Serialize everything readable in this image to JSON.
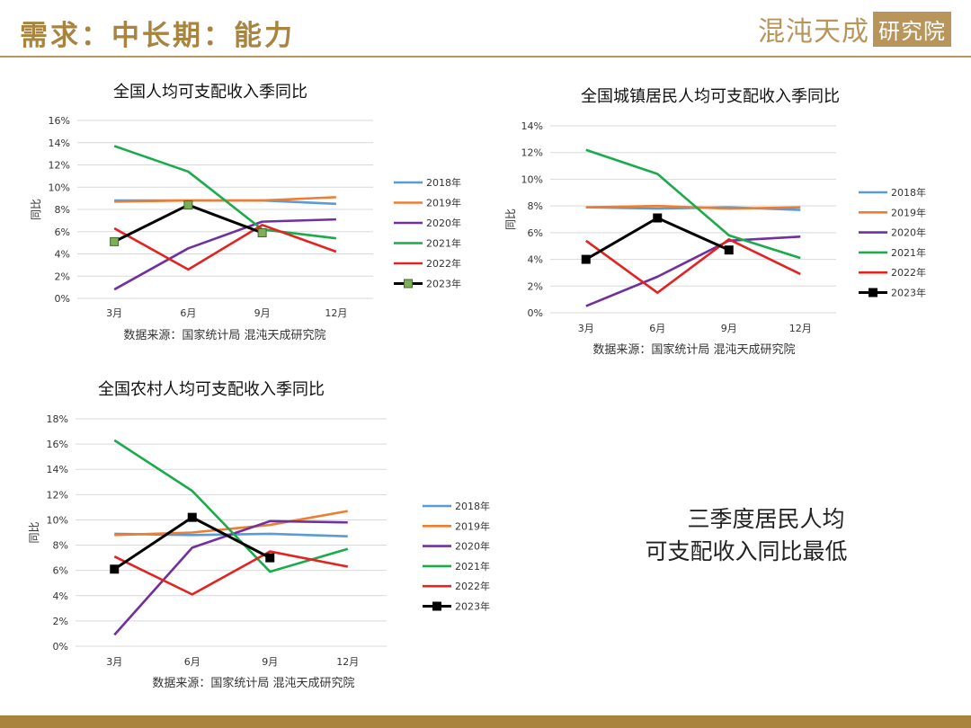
{
  "page": {
    "title": "需求：中长期：能力",
    "logo_text": "混沌天成",
    "logo_box": "研究院",
    "note_line1": "三季度居民人均",
    "note_line2": "可支配收入同比最低"
  },
  "colors": {
    "2018年": "#5b9bd5",
    "2019年": "#ed7d31",
    "2020年": "#7030a0",
    "2021年": "#1aab4b",
    "2022年": "#e32222",
    "2023年": "#000000"
  },
  "chart_data": [
    {
      "id": "national",
      "type": "line",
      "title": "全国人均可支配收入季同比",
      "ylabel": "同比",
      "source": "数据来源：国家统计局 混沌天成研究院",
      "categories": [
        "3月",
        "6月",
        "9月",
        "12月"
      ],
      "ylim": [
        0,
        16
      ],
      "yticks": [
        0,
        2,
        4,
        6,
        8,
        10,
        12,
        14,
        16
      ],
      "legend_position": "right",
      "marker_2023": "square-green",
      "series": [
        {
          "name": "2018年",
          "values": [
            8.8,
            8.8,
            8.8,
            8.5
          ]
        },
        {
          "name": "2019年",
          "values": [
            8.7,
            8.8,
            8.8,
            9.1
          ]
        },
        {
          "name": "2020年",
          "values": [
            0.8,
            4.5,
            6.9,
            7.1
          ]
        },
        {
          "name": "2021年",
          "values": [
            13.7,
            11.4,
            6.2,
            5.4
          ]
        },
        {
          "name": "2022年",
          "values": [
            6.3,
            2.6,
            6.6,
            4.2
          ]
        },
        {
          "name": "2023年",
          "values": [
            5.1,
            8.4,
            5.9,
            null
          ]
        }
      ]
    },
    {
      "id": "urban",
      "type": "line",
      "title": "全国城镇居民人均可支配收入季同比",
      "ylabel": "同比",
      "source": "数据来源：国家统计局 混沌天成研究院",
      "categories": [
        "3月",
        "6月",
        "9月",
        "12月"
      ],
      "ylim": [
        0,
        14
      ],
      "yticks": [
        0,
        2,
        4,
        6,
        8,
        10,
        12,
        14
      ],
      "legend_position": "right",
      "marker_2023": "square-black",
      "series": [
        {
          "name": "2018年",
          "values": [
            7.9,
            7.8,
            7.9,
            7.7
          ]
        },
        {
          "name": "2019年",
          "values": [
            7.9,
            8.0,
            7.8,
            7.9
          ]
        },
        {
          "name": "2020年",
          "values": [
            0.5,
            2.7,
            5.4,
            5.7
          ]
        },
        {
          "name": "2021年",
          "values": [
            12.2,
            10.4,
            5.8,
            4.1
          ]
        },
        {
          "name": "2022年",
          "values": [
            5.4,
            1.5,
            5.5,
            2.9
          ]
        },
        {
          "name": "2023年",
          "values": [
            4.0,
            7.1,
            4.7,
            null
          ]
        }
      ]
    },
    {
      "id": "rural",
      "type": "line",
      "title": "全国农村人均可支配收入季同比",
      "ylabel": "同比",
      "source": "数据来源：国家统计局 混沌天成研究院",
      "categories": [
        "3月",
        "6月",
        "9月",
        "12月"
      ],
      "ylim": [
        0,
        18
      ],
      "yticks": [
        0,
        2,
        4,
        6,
        8,
        10,
        12,
        14,
        16,
        18
      ],
      "legend_position": "right",
      "marker_2023": "square-black",
      "series": [
        {
          "name": "2018年",
          "values": [
            8.9,
            8.8,
            8.9,
            8.7
          ]
        },
        {
          "name": "2019年",
          "values": [
            8.8,
            9.0,
            9.6,
            10.7
          ]
        },
        {
          "name": "2020年",
          "values": [
            0.9,
            7.8,
            9.9,
            9.8
          ]
        },
        {
          "name": "2021年",
          "values": [
            16.3,
            12.3,
            5.9,
            7.7
          ]
        },
        {
          "name": "2022年",
          "values": [
            7.1,
            4.1,
            7.5,
            6.3
          ]
        },
        {
          "name": "2023年",
          "values": [
            6.1,
            10.2,
            7.0,
            null
          ]
        }
      ]
    }
  ]
}
